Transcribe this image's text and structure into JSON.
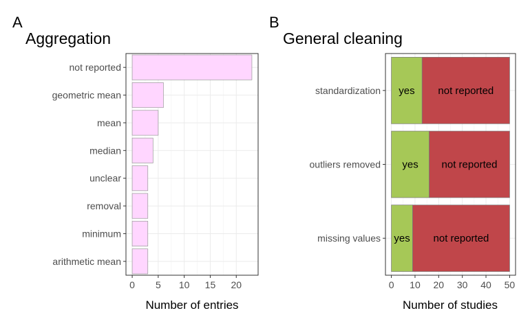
{
  "chart_data": [
    {
      "panel_label": "A",
      "type": "bar",
      "orientation": "horizontal",
      "title": "Aggregation",
      "xlabel": "Number of entries",
      "ylabel": "",
      "categories": [
        "not reported",
        "geometric mean",
        "mean",
        "median",
        "unclear",
        "removal",
        "minimum",
        "arithmetic mean"
      ],
      "values": [
        23,
        6,
        5,
        4,
        3,
        3,
        3,
        3
      ],
      "xlim": [
        -1.2,
        24.2
      ],
      "xticks": [
        0,
        5,
        10,
        15,
        20
      ],
      "xtick_labels": [
        "0",
        "5",
        "10",
        "15",
        "20"
      ],
      "bar_color": "#ffd6ff",
      "grid": true,
      "legend": "none"
    },
    {
      "panel_label": "B",
      "type": "bar",
      "orientation": "horizontal",
      "stacked": true,
      "title": "General cleaning",
      "xlabel": "Number of studies",
      "ylabel": "",
      "categories": [
        "standardization",
        "outliers removed",
        "missing values"
      ],
      "series": [
        {
          "name": "yes",
          "values": [
            13,
            16,
            9
          ],
          "color": "#a6c857"
        },
        {
          "name": "not reported",
          "values": [
            37,
            34,
            41
          ],
          "color": "#c0464a"
        }
      ],
      "xlim": [
        -2.5,
        52.5
      ],
      "xticks": [
        0,
        10,
        20,
        30,
        40,
        50
      ],
      "xtick_labels": [
        "0",
        "10",
        "20",
        "30",
        "40",
        "50"
      ],
      "grid": true,
      "legend": "none"
    }
  ]
}
